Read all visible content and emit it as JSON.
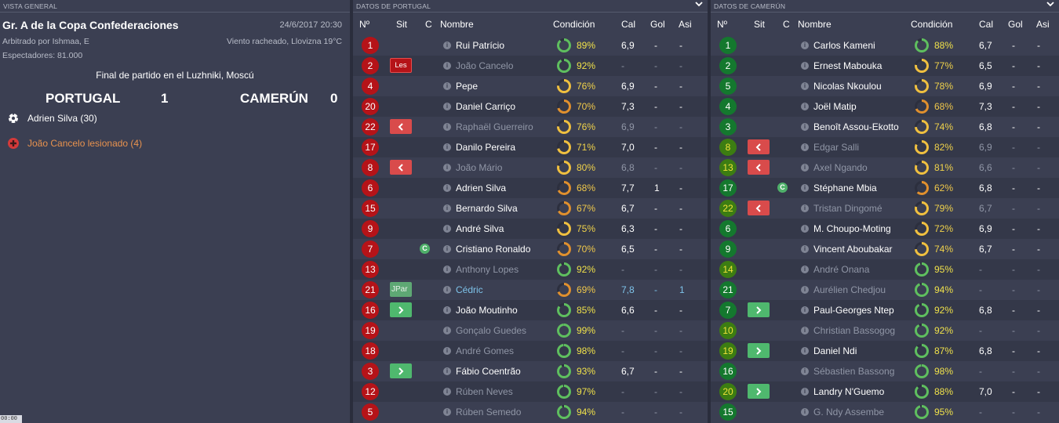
{
  "colors": {
    "background": "#3b3f52",
    "red_num": "#b51318",
    "green_num": "#14782e",
    "lime_num": "#3c7d12",
    "ring_green": "#5fbf5f",
    "ring_yellow": "#f0c040",
    "ring_orange": "#e0902e"
  },
  "overview": {
    "header": "VISTA GENERAL",
    "title": "Gr. A de la Copa Confederaciones",
    "datetime": "24/6/2017 20:30",
    "referee": "Arbitrado por Ishmaa, E",
    "weather": "Viento racheado, Llovizna 19°C",
    "spectators": "Espectadores: 81.000",
    "final": "Final de partido en el Luzhniki, Moscú",
    "home_team": "PORTUGAL",
    "home_score": "1",
    "away_team": "CAMERÚN",
    "away_score": "0",
    "events": [
      {
        "icon": "ball-icon",
        "text": "Adrien Silva (30)"
      },
      {
        "icon": "injury-icon",
        "text": "João Cancelo lesionado (4)"
      }
    ],
    "clock": "00:00"
  },
  "portugal": {
    "header": "DATOS DE PORTUGAL",
    "columns": [
      "Nº",
      "Sit",
      "C",
      "Nombre",
      "Condición",
      "Cal",
      "Gol",
      "Asi"
    ],
    "players": [
      {
        "num": "1",
        "sit": "",
        "cap": "",
        "name": "Rui Patrício",
        "cond": "89%",
        "cond_value": 89,
        "cal": "6,9",
        "gol": "-",
        "asi": "-",
        "dim": false
      },
      {
        "num": "2",
        "sit": "Les",
        "cap": "",
        "name": "João Cancelo",
        "cond": "92%",
        "cond_value": 92,
        "cal": "-",
        "gol": "-",
        "asi": "-",
        "dim": true
      },
      {
        "num": "4",
        "sit": "",
        "cap": "",
        "name": "Pepe",
        "cond": "76%",
        "cond_value": 76,
        "cal": "6,9",
        "gol": "-",
        "asi": "-",
        "dim": false
      },
      {
        "num": "20",
        "sit": "",
        "cap": "",
        "name": "Daniel Carriço",
        "cond": "70%",
        "cond_value": 70,
        "cal": "7,3",
        "gol": "-",
        "asi": "-",
        "dim": false
      },
      {
        "num": "22",
        "sit": "out",
        "cap": "",
        "name": "Raphaël Guerreiro",
        "cond": "76%",
        "cond_value": 76,
        "cal": "6,9",
        "gol": "-",
        "asi": "-",
        "dim": true
      },
      {
        "num": "17",
        "sit": "",
        "cap": "",
        "name": "Danilo Pereira",
        "cond": "71%",
        "cond_value": 71,
        "cal": "7,0",
        "gol": "-",
        "asi": "-",
        "dim": false
      },
      {
        "num": "8",
        "sit": "out",
        "cap": "",
        "name": "João Mário",
        "cond": "80%",
        "cond_value": 80,
        "cal": "6,8",
        "gol": "-",
        "asi": "-",
        "dim": true
      },
      {
        "num": "6",
        "sit": "",
        "cap": "",
        "name": "Adrien Silva",
        "cond": "68%",
        "cond_value": 68,
        "cal": "7,7",
        "gol": "1",
        "asi": "-",
        "dim": false
      },
      {
        "num": "15",
        "sit": "",
        "cap": "",
        "name": "Bernardo Silva",
        "cond": "67%",
        "cond_value": 67,
        "cal": "6,7",
        "gol": "-",
        "asi": "-",
        "dim": false
      },
      {
        "num": "9",
        "sit": "",
        "cap": "",
        "name": "André Silva",
        "cond": "75%",
        "cond_value": 75,
        "cal": "6,3",
        "gol": "-",
        "asi": "-",
        "dim": false
      },
      {
        "num": "7",
        "sit": "",
        "cap": "C",
        "name": "Cristiano Ronaldo",
        "cond": "70%",
        "cond_value": 70,
        "cal": "6,5",
        "gol": "-",
        "asi": "-",
        "dim": false
      },
      {
        "num": "13",
        "sit": "",
        "cap": "",
        "name": "Anthony Lopes",
        "cond": "92%",
        "cond_value": 92,
        "cal": "-",
        "gol": "-",
        "asi": "-",
        "dim": true
      },
      {
        "num": "21",
        "sit": "JPar",
        "cap": "",
        "name": "Cédric",
        "cond": "69%",
        "cond_value": 69,
        "cal": "7,8",
        "gol": "-",
        "asi": "1",
        "dim": false,
        "blue": true
      },
      {
        "num": "16",
        "sit": "in",
        "cap": "",
        "name": "João Moutinho",
        "cond": "85%",
        "cond_value": 85,
        "cal": "6,6",
        "gol": "-",
        "asi": "-",
        "dim": false
      },
      {
        "num": "19",
        "sit": "",
        "cap": "",
        "name": "Gonçalo Guedes",
        "cond": "99%",
        "cond_value": 99,
        "cal": "-",
        "gol": "-",
        "asi": "-",
        "dim": true
      },
      {
        "num": "18",
        "sit": "",
        "cap": "",
        "name": "André Gomes",
        "cond": "98%",
        "cond_value": 98,
        "cal": "-",
        "gol": "-",
        "asi": "-",
        "dim": true
      },
      {
        "num": "3",
        "sit": "in",
        "cap": "",
        "name": "Fábio Coentrão",
        "cond": "93%",
        "cond_value": 93,
        "cal": "6,7",
        "gol": "-",
        "asi": "-",
        "dim": false
      },
      {
        "num": "12",
        "sit": "",
        "cap": "",
        "name": "Rúben Neves",
        "cond": "97%",
        "cond_value": 97,
        "cal": "-",
        "gol": "-",
        "asi": "-",
        "dim": true
      },
      {
        "num": "5",
        "sit": "",
        "cap": "",
        "name": "Rúben Semedo",
        "cond": "94%",
        "cond_value": 94,
        "cal": "-",
        "gol": "-",
        "asi": "-",
        "dim": true
      }
    ]
  },
  "cameroon": {
    "header": "DATOS DE CAMERÚN",
    "columns": [
      "Nº",
      "Sit",
      "C",
      "Nombre",
      "Condición",
      "Cal",
      "Gol",
      "Asi"
    ],
    "players": [
      {
        "num": "1",
        "sit": "",
        "cap": "",
        "name": "Carlos Kameni",
        "cond": "88%",
        "cond_value": 88,
        "cal": "6,7",
        "gol": "-",
        "asi": "-",
        "dim": false,
        "numStyle": "green"
      },
      {
        "num": "2",
        "sit": "",
        "cap": "",
        "name": "Ernest Mabouka",
        "cond": "77%",
        "cond_value": 77,
        "cal": "6,5",
        "gol": "-",
        "asi": "-",
        "dim": false,
        "numStyle": "green"
      },
      {
        "num": "5",
        "sit": "",
        "cap": "",
        "name": "Nicolas Nkoulou",
        "cond": "78%",
        "cond_value": 78,
        "cal": "6,9",
        "gol": "-",
        "asi": "-",
        "dim": false,
        "numStyle": "green"
      },
      {
        "num": "4",
        "sit": "",
        "cap": "",
        "name": "Joël Matip",
        "cond": "68%",
        "cond_value": 68,
        "cal": "7,3",
        "gol": "-",
        "asi": "-",
        "dim": false,
        "numStyle": "green"
      },
      {
        "num": "3",
        "sit": "",
        "cap": "",
        "name": "Benoît Assou-Ekotto",
        "cond": "74%",
        "cond_value": 74,
        "cal": "6,8",
        "gol": "-",
        "asi": "-",
        "dim": false,
        "numStyle": "green"
      },
      {
        "num": "8",
        "sit": "out",
        "cap": "",
        "name": "Edgar Salli",
        "cond": "82%",
        "cond_value": 82,
        "cal": "6,9",
        "gol": "-",
        "asi": "-",
        "dim": true,
        "numStyle": "lime"
      },
      {
        "num": "13",
        "sit": "out",
        "cap": "",
        "name": "Axel Ngando",
        "cond": "81%",
        "cond_value": 81,
        "cal": "6,6",
        "gol": "-",
        "asi": "-",
        "dim": true,
        "numStyle": "lime"
      },
      {
        "num": "17",
        "sit": "",
        "cap": "C",
        "name": "Stéphane Mbia",
        "cond": "62%",
        "cond_value": 62,
        "cal": "6,8",
        "gol": "-",
        "asi": "-",
        "dim": false,
        "numStyle": "green"
      },
      {
        "num": "22",
        "sit": "out",
        "cap": "",
        "name": "Tristan Dingomé",
        "cond": "79%",
        "cond_value": 79,
        "cal": "6,7",
        "gol": "-",
        "asi": "-",
        "dim": true,
        "numStyle": "lime"
      },
      {
        "num": "6",
        "sit": "",
        "cap": "",
        "name": "M. Choupo-Moting",
        "cond": "72%",
        "cond_value": 72,
        "cal": "6,9",
        "gol": "-",
        "asi": "-",
        "dim": false,
        "numStyle": "green"
      },
      {
        "num": "9",
        "sit": "",
        "cap": "",
        "name": "Vincent Aboubakar",
        "cond": "74%",
        "cond_value": 74,
        "cal": "6,7",
        "gol": "-",
        "asi": "-",
        "dim": false,
        "numStyle": "green"
      },
      {
        "num": "14",
        "sit": "",
        "cap": "",
        "name": "André Onana",
        "cond": "95%",
        "cond_value": 95,
        "cal": "-",
        "gol": "-",
        "asi": "-",
        "dim": true,
        "numStyle": "lime"
      },
      {
        "num": "21",
        "sit": "",
        "cap": "",
        "name": "Aurélien Chedjou",
        "cond": "94%",
        "cond_value": 94,
        "cal": "-",
        "gol": "-",
        "asi": "-",
        "dim": true,
        "numStyle": "green"
      },
      {
        "num": "7",
        "sit": "in",
        "cap": "",
        "name": "Paul-Georges Ntep",
        "cond": "92%",
        "cond_value": 92,
        "cal": "6,8",
        "gol": "-",
        "asi": "-",
        "dim": false,
        "numStyle": "green"
      },
      {
        "num": "10",
        "sit": "",
        "cap": "",
        "name": "Christian Bassogog",
        "cond": "92%",
        "cond_value": 92,
        "cal": "-",
        "gol": "-",
        "asi": "-",
        "dim": true,
        "numStyle": "lime"
      },
      {
        "num": "19",
        "sit": "in",
        "cap": "",
        "name": "Daniel Ndi",
        "cond": "87%",
        "cond_value": 87,
        "cal": "6,8",
        "gol": "-",
        "asi": "-",
        "dim": false,
        "numStyle": "lime"
      },
      {
        "num": "16",
        "sit": "",
        "cap": "",
        "name": "Sébastien Bassong",
        "cond": "98%",
        "cond_value": 98,
        "cal": "-",
        "gol": "-",
        "asi": "-",
        "dim": true,
        "numStyle": "green"
      },
      {
        "num": "20",
        "sit": "in",
        "cap": "",
        "name": "Landry N'Guemo",
        "cond": "88%",
        "cond_value": 88,
        "cal": "7,0",
        "gol": "-",
        "asi": "-",
        "dim": false,
        "numStyle": "lime"
      },
      {
        "num": "15",
        "sit": "",
        "cap": "",
        "name": "G. Ndy Assembe",
        "cond": "95%",
        "cond_value": 95,
        "cal": "-",
        "gol": "-",
        "asi": "-",
        "dim": true,
        "numStyle": "green"
      }
    ]
  }
}
